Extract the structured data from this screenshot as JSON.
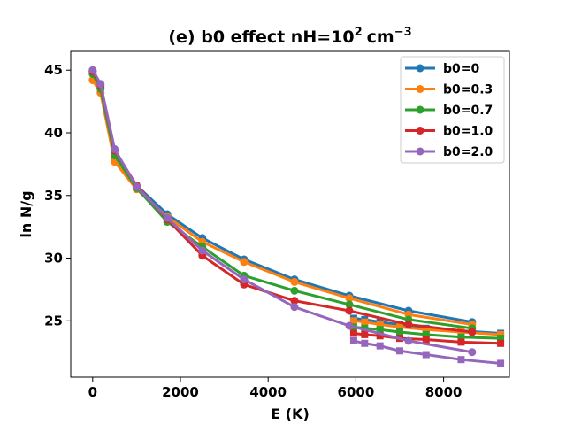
{
  "chart_data": {
    "type": "line",
    "title_main": "(e) b0 effect nH=10",
    "title_exp": "2",
    "title_unit": "cm",
    "title_unit_exp": "−3",
    "xlabel": "E (K)",
    "ylabel": "ln N/g",
    "xlim": [
      -500,
      9500
    ],
    "ylim": [
      20.5,
      46.5
    ],
    "xticks": [
      0,
      2000,
      4000,
      6000,
      8000
    ],
    "yticks": [
      25,
      30,
      35,
      40,
      45
    ],
    "legend_position": "upper right",
    "series": [
      {
        "name": "b0=0",
        "color": "#1f77b4",
        "x": [
          0,
          180,
          500,
          1000,
          1700,
          2500,
          3450,
          4600,
          5850,
          7200,
          8650
        ],
        "y": [
          44.9,
          43.6,
          38.1,
          35.8,
          33.5,
          31.6,
          29.9,
          28.3,
          27.0,
          25.8,
          24.9
        ],
        "tail_x": [
          5950,
          6200,
          6550,
          7000,
          7600,
          8400,
          9300
        ],
        "tail_y": [
          25.2,
          25.1,
          24.9,
          24.7,
          24.4,
          24.2,
          24.0
        ]
      },
      {
        "name": "b0=0.3",
        "color": "#ff7f0e",
        "x": [
          0,
          180,
          500,
          1000,
          1700,
          2500,
          3450,
          4600,
          5850,
          7200,
          8650
        ],
        "y": [
          44.2,
          43.2,
          37.7,
          35.5,
          33.3,
          31.3,
          29.7,
          28.1,
          26.8,
          25.5,
          24.7
        ],
        "tail_x": [
          5950,
          6200,
          6550,
          7000,
          7600,
          8400,
          9300
        ],
        "tail_y": [
          25.0,
          24.9,
          24.7,
          24.5,
          24.3,
          24.1,
          23.9
        ]
      },
      {
        "name": "b0=0.7",
        "color": "#2ca02c",
        "x": [
          0,
          180,
          500,
          1000,
          1700,
          2500,
          3450,
          4600,
          5850,
          7200,
          8650
        ],
        "y": [
          44.7,
          43.5,
          38.2,
          35.6,
          32.9,
          30.9,
          28.6,
          27.4,
          26.3,
          25.1,
          24.4
        ],
        "tail_x": [
          5950,
          6200,
          6550,
          7000,
          7600,
          8400,
          9300
        ],
        "tail_y": [
          24.5,
          24.4,
          24.3,
          24.1,
          23.9,
          23.7,
          23.6
        ]
      },
      {
        "name": "b0=1.0",
        "color": "#d62728",
        "x": [
          0,
          180,
          500,
          1000,
          1700,
          2500,
          3450,
          4600,
          5850,
          7200,
          8650
        ],
        "y": [
          44.9,
          43.8,
          38.6,
          35.8,
          33.1,
          30.2,
          27.9,
          26.6,
          25.8,
          24.7,
          24.1
        ],
        "tail_x": [
          5950,
          6200,
          6550,
          7000,
          7600,
          8400,
          9300
        ],
        "tail_y": [
          24.0,
          23.9,
          23.8,
          23.6,
          23.5,
          23.3,
          23.2
        ]
      },
      {
        "name": "b0=2.0",
        "color": "#9467bd",
        "x": [
          0,
          180,
          500,
          1000,
          1700,
          2500,
          3450,
          4600,
          5850,
          7200,
          8650
        ],
        "y": [
          45.0,
          43.9,
          38.7,
          35.7,
          33.2,
          30.6,
          28.3,
          26.1,
          24.6,
          23.4,
          22.5
        ],
        "tail_x": [
          5950,
          6200,
          6550,
          7000,
          7600,
          8400,
          9300
        ],
        "tail_y": [
          23.4,
          23.2,
          23.0,
          22.6,
          22.3,
          21.9,
          21.6
        ]
      }
    ]
  }
}
